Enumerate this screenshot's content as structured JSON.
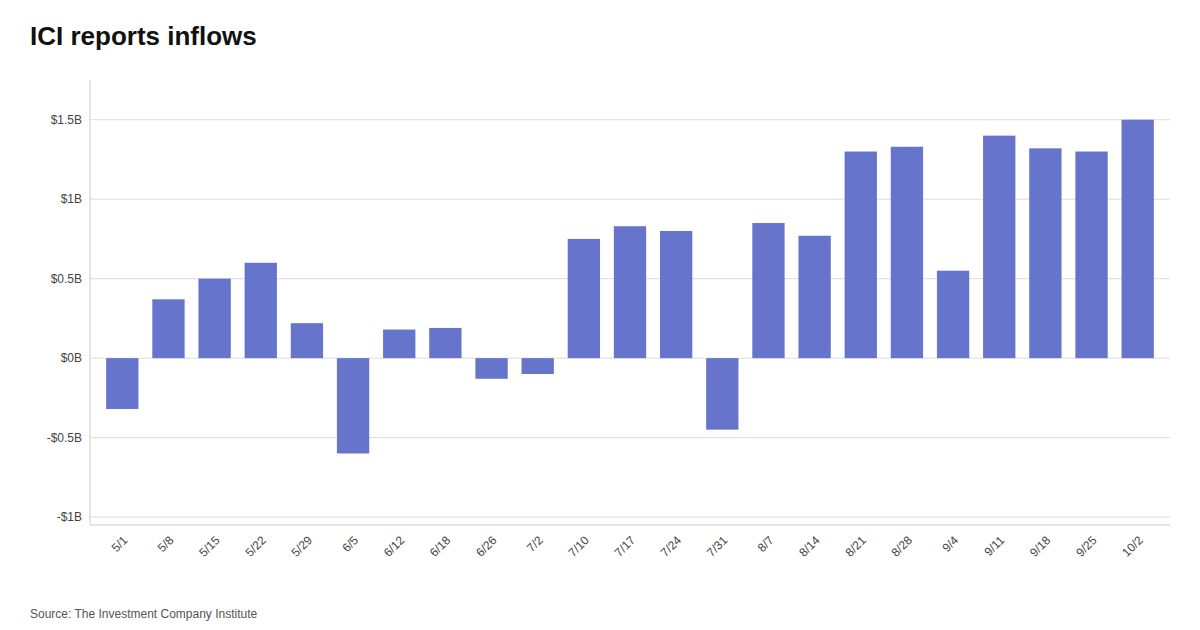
{
  "chart_data": {
    "type": "bar",
    "title": "ICI reports inflows",
    "source": "Source: The Investment Company Institute",
    "categories": [
      "5/1",
      "5/8",
      "5/15",
      "5/22",
      "5/29",
      "6/5",
      "6/12",
      "6/18",
      "6/26",
      "7/2",
      "7/10",
      "7/17",
      "7/24",
      "7/31",
      "8/7",
      "8/14",
      "8/21",
      "8/28",
      "9/4",
      "9/11",
      "9/18",
      "9/25",
      "10/2"
    ],
    "values": [
      -0.32,
      0.37,
      0.5,
      0.6,
      0.22,
      -0.6,
      0.18,
      0.19,
      -0.13,
      -0.1,
      0.75,
      0.83,
      0.8,
      -0.45,
      0.85,
      0.77,
      1.3,
      1.33,
      0.55,
      1.4,
      1.32,
      1.3,
      1.5
    ],
    "color": "#6674cc",
    "ylim": [
      -1.05,
      1.75
    ],
    "yticks": [
      {
        "value": -1.0,
        "label": "-$1B"
      },
      {
        "value": -0.5,
        "label": "-$0.5B"
      },
      {
        "value": 0.0,
        "label": "$0B"
      },
      {
        "value": 0.5,
        "label": "$0.5B"
      },
      {
        "value": 1.0,
        "label": "$1B"
      },
      {
        "value": 1.5,
        "label": "$1.5B"
      }
    ],
    "grid": true
  }
}
